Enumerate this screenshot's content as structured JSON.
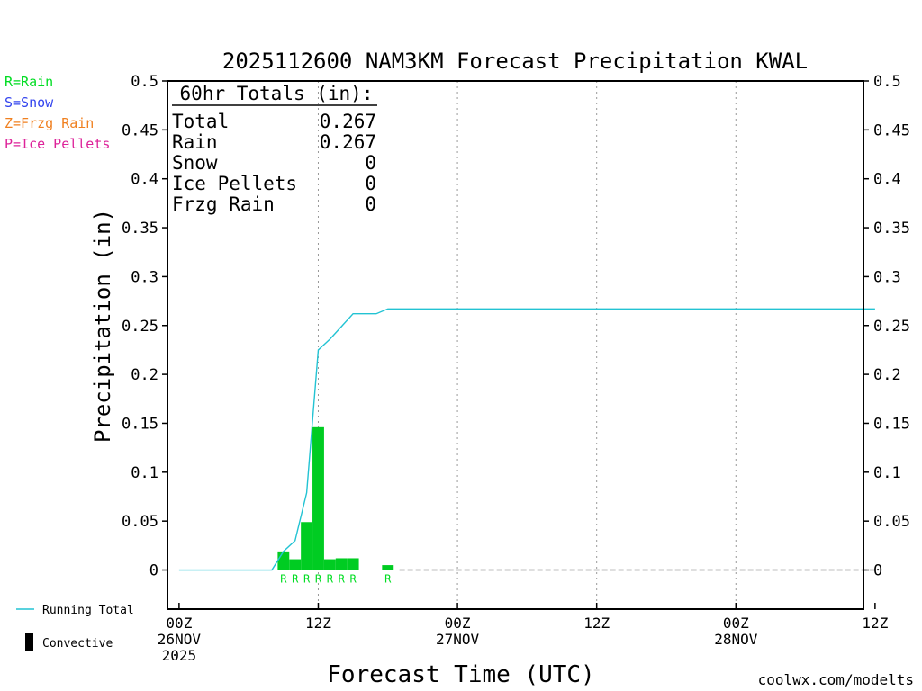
{
  "chart_data": {
    "type": "bar",
    "title": "2025112600 NAM3KM Forecast Precipitation KWAL",
    "ylabel": "Precipitation (in)",
    "xlabel": "Forecast Time (UTC)",
    "ylim": [
      -0.04,
      0.5
    ],
    "xlim": [
      -1,
      59
    ],
    "yticks": [
      0,
      0.05,
      0.1,
      0.15,
      0.2,
      0.25,
      0.3,
      0.35,
      0.4,
      0.45,
      0.5
    ],
    "ytick_labels": [
      "0",
      "0.05",
      "0.1",
      "0.15",
      "0.2",
      "0.25",
      "0.3",
      "0.35",
      "0.4",
      "0.45",
      "0.5"
    ],
    "x_ticks": [
      {
        "hour": 0,
        "lines": [
          "00Z",
          "26NOV",
          "2025"
        ]
      },
      {
        "hour": 12,
        "lines": [
          "12Z"
        ]
      },
      {
        "hour": 24,
        "lines": [
          "00Z",
          "27NOV"
        ]
      },
      {
        "hour": 36,
        "lines": [
          "12Z"
        ]
      },
      {
        "hour": 48,
        "lines": [
          "00Z",
          "28NOV"
        ]
      },
      {
        "hour": 60,
        "lines": [
          "12Z"
        ]
      }
    ],
    "grid_hours": [
      12,
      24,
      36,
      48
    ],
    "bars": [
      {
        "hour": 9,
        "value": 0.019,
        "type": "R"
      },
      {
        "hour": 10,
        "value": 0.011,
        "type": "R"
      },
      {
        "hour": 11,
        "value": 0.049,
        "type": "R"
      },
      {
        "hour": 12,
        "value": 0.146,
        "type": "R"
      },
      {
        "hour": 13,
        "value": 0.011,
        "type": "R"
      },
      {
        "hour": 14,
        "value": 0.012,
        "type": "R"
      },
      {
        "hour": 15,
        "value": 0.012,
        "type": "R"
      },
      {
        "hour": 18,
        "value": 0.005,
        "type": "R"
      }
    ],
    "running_total": {
      "name": "Running Total",
      "color": "#22c3d3",
      "x": [
        0,
        1,
        2,
        3,
        4,
        5,
        6,
        7,
        8,
        9,
        10,
        11,
        12,
        13,
        14,
        15,
        16,
        17,
        18,
        19,
        20,
        30,
        40,
        50,
        60
      ],
      "y": [
        0,
        0,
        0,
        0,
        0,
        0,
        0,
        0,
        0,
        0.019,
        0.03,
        0.079,
        0.225,
        0.236,
        0.249,
        0.262,
        0.262,
        0.262,
        0.267,
        0.267,
        0.267,
        0.267,
        0.267,
        0.267,
        0.267
      ]
    },
    "zero_line_hours": [
      19,
      60
    ],
    "bar_color": "#00cc22",
    "legend_left": [
      {
        "label": "R=Rain",
        "color": "#00dd22"
      },
      {
        "label": "S=Snow",
        "color": "#3344ee"
      },
      {
        "label": "Z=Frzg Rain",
        "color": "#f08020"
      },
      {
        "label": "P=Ice Pellets",
        "color": "#dd2299"
      }
    ],
    "totals": {
      "header": "60hr Totals (in):",
      "rows": [
        {
          "label": "Total",
          "value": "0.267"
        },
        {
          "label": "Rain",
          "value": "0.267"
        },
        {
          "label": "Snow",
          "value": "0"
        },
        {
          "label": "Ice Pellets",
          "value": "0"
        },
        {
          "label": "Frzg Rain",
          "value": "0"
        }
      ]
    },
    "key_running_total": "Running Total",
    "key_convective": "Convective",
    "credit": "coolwx.com/modelts",
    "credit_color": "#e0103a"
  }
}
